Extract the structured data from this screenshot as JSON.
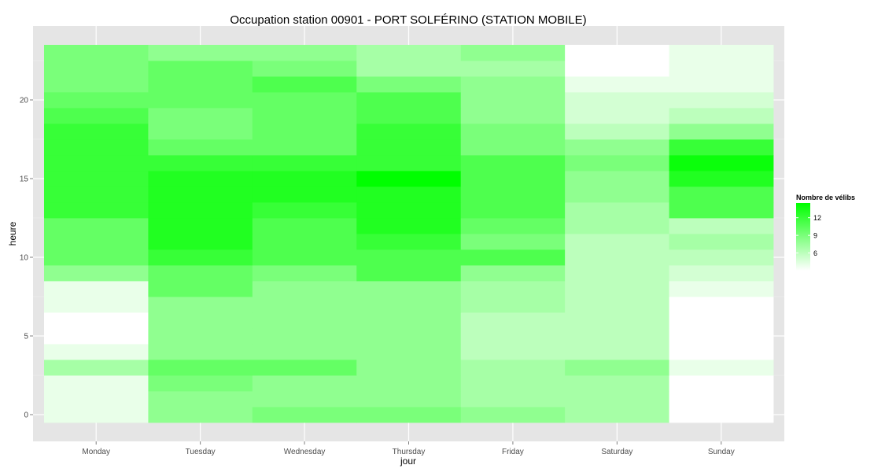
{
  "chart_data": {
    "type": "heatmap",
    "title": "Occupation station 00901 - PORT SOLFÉRINO (STATION MOBILE)",
    "xlabel": "jour",
    "ylabel": "heure",
    "x_categories": [
      "Monday",
      "Tuesday",
      "Wednesday",
      "Thursday",
      "Friday",
      "Saturday",
      "Sunday"
    ],
    "y_range": [
      -0.5,
      23.5
    ],
    "y_ticks": [
      0,
      5,
      10,
      15,
      20
    ],
    "color_scale": {
      "low": "#ffffff",
      "high": "#00ff00",
      "min": 3,
      "max": 14.5
    },
    "legend": {
      "title": "Nombre de vélibs",
      "ticks": [
        6,
        9,
        12
      ],
      "position": "right"
    },
    "grid": true,
    "background": "#e5e5e5",
    "values": [
      [
        4,
        8,
        9,
        9,
        8,
        7,
        3
      ],
      [
        4,
        8,
        8,
        8,
        7,
        7,
        3
      ],
      [
        4,
        9,
        8,
        8,
        7,
        7,
        3
      ],
      [
        7,
        10,
        10,
        8,
        7,
        8,
        4
      ],
      [
        4,
        8,
        8,
        8,
        6,
        6,
        3
      ],
      [
        3,
        8,
        8,
        8,
        6,
        6,
        3
      ],
      [
        3,
        8,
        8,
        8,
        6,
        6,
        3
      ],
      [
        4,
        8,
        8,
        8,
        7,
        6,
        3
      ],
      [
        4,
        10,
        8,
        8,
        7,
        6,
        4
      ],
      [
        8,
        10,
        9,
        11,
        8,
        6,
        5
      ],
      [
        10,
        12,
        11,
        11,
        11,
        6,
        6
      ],
      [
        10,
        13,
        11,
        12,
        9,
        6,
        7
      ],
      [
        10,
        13,
        11,
        13,
        10,
        7,
        6
      ],
      [
        12,
        13,
        12,
        13,
        11,
        7,
        11
      ],
      [
        12,
        13,
        13,
        13,
        11,
        8,
        11
      ],
      [
        12,
        13,
        13,
        14.5,
        11,
        8,
        13
      ],
      [
        12,
        12,
        12,
        12,
        11,
        9,
        14
      ],
      [
        12,
        10,
        10,
        12,
        9,
        8,
        12
      ],
      [
        12,
        9,
        10,
        12,
        9,
        6,
        8
      ],
      [
        11,
        9,
        10,
        11,
        8,
        5,
        6
      ],
      [
        10,
        10,
        10,
        11,
        8,
        5,
        5
      ],
      [
        9,
        10,
        11,
        9,
        8,
        4,
        4
      ],
      [
        9,
        10,
        9,
        7,
        7,
        3,
        4
      ],
      [
        9,
        8,
        8,
        7,
        8,
        3,
        4
      ]
    ]
  }
}
